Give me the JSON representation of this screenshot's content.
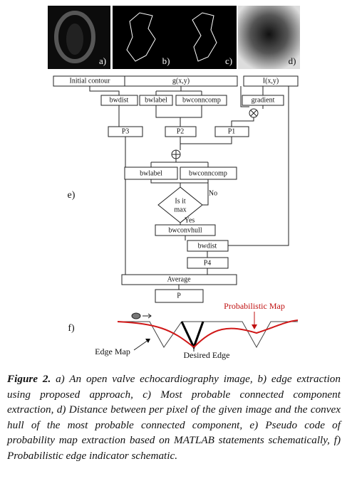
{
  "panels": [
    {
      "label": "a)"
    },
    {
      "label": "b)"
    },
    {
      "label": "c)"
    },
    {
      "label": "d)"
    }
  ],
  "flowchart": {
    "label": "e)",
    "initial_contour": "Initial contour",
    "g": "g(x,y)",
    "i": "I(x,y)",
    "bwdist_1": "bwdist",
    "bwlabel_1": "bwlabel",
    "bwconncomp_1": "bwconncomp",
    "gradient": "gradient",
    "p3": "P3",
    "p2": "P2",
    "p1": "P1",
    "bwlabel_2": "bwlabel",
    "bwconncomp_2": "bwconncomp",
    "decision": [
      "Is it",
      "max"
    ],
    "no": "No",
    "yes": "Yes",
    "bwconvhull": "bwconvhull",
    "bwdist_2": "bwdist",
    "p4": "P4",
    "average": "Average",
    "p": "P"
  },
  "schematic": {
    "label": "f)",
    "probabilistic_map": "Probabilistic  Map",
    "edge_map": "Edge Map",
    "desired_edge": "Desired Edge"
  },
  "caption": {
    "label": "Figure 2.",
    "text": " a) An open valve echocardiography image, b) edge extraction using proposed approach, c) Most probable connected component extraction, d) Distance between per pixel of the given image and the convex hull of the most probable connected component, e) Pseudo code of probability map extraction based on MATLAB statements schematically, f) Probabilistic edge indicator schematic."
  }
}
